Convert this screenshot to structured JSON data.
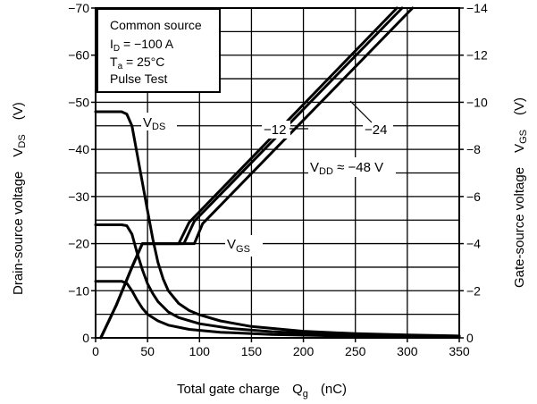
{
  "chart_data": {
    "type": "line",
    "x_ticks": [
      "0",
      "50",
      "100",
      "150",
      "200",
      "250",
      "300",
      "350"
    ],
    "y_left_ticks": [
      "0",
      "−10",
      "−20",
      "−30",
      "−40",
      "−50",
      "−60",
      "−70"
    ],
    "y_right_ticks": [
      "0",
      "−2",
      "−4",
      "−6",
      "−8",
      "−10",
      "−12",
      "−14"
    ],
    "xlim": [
      0,
      350
    ],
    "ylim_left": [
      0,
      -70
    ],
    "ylim_right": [
      0,
      -14
    ],
    "grid": true,
    "x_label": {
      "main": "Total gate charge",
      "sym": "Q",
      "sub": "g",
      "unit": "(nC)"
    },
    "y_left_label": {
      "main": "Drain-source voltage",
      "sym": "V",
      "sub": "DS",
      "unit": "(V)"
    },
    "y_right_label": {
      "main": "Gate-source voltage",
      "sym": "V",
      "sub": "GS",
      "unit": "(V)"
    },
    "legend": {
      "title": "Common source",
      "line1": {
        "sym": "I",
        "sub": "D",
        "text": " = −100 A"
      },
      "line2": {
        "sym": "T",
        "sub": "a",
        "text": " = 25°C"
      },
      "line3": "Pulse Test"
    },
    "annotations": {
      "vds": {
        "sym": "V",
        "sub": "DS"
      },
      "vgs": {
        "sym": "V",
        "sub": "GS"
      },
      "vdd": {
        "sym": "V",
        "sub": "DD",
        "text": " ≈ −48 V"
      },
      "m12": "−12",
      "m24": "−24"
    },
    "series": [
      {
        "axis": "left",
        "label": "VDS at VDD −48 V",
        "points": [
          [
            0,
            -48
          ],
          [
            25,
            -48
          ],
          [
            30,
            -47.5
          ],
          [
            35,
            -45
          ],
          [
            40,
            -39
          ],
          [
            45,
            -33
          ],
          [
            50,
            -27
          ],
          [
            55,
            -21
          ],
          [
            60,
            -16
          ],
          [
            65,
            -12.5
          ],
          [
            70,
            -10
          ],
          [
            80,
            -7.3
          ],
          [
            90,
            -5.8
          ],
          [
            100,
            -4.9
          ],
          [
            120,
            -3.6
          ],
          [
            150,
            -2.4
          ],
          [
            200,
            -1.4
          ],
          [
            250,
            -0.9
          ],
          [
            300,
            -0.6
          ],
          [
            350,
            -0.4
          ]
        ]
      },
      {
        "axis": "left",
        "label": "VDS at VDD −24 V",
        "points": [
          [
            0,
            -24
          ],
          [
            25,
            -24
          ],
          [
            30,
            -23.8
          ],
          [
            35,
            -22
          ],
          [
            40,
            -18
          ],
          [
            45,
            -14.5
          ],
          [
            50,
            -11.5
          ],
          [
            55,
            -9.4
          ],
          [
            60,
            -7.7
          ],
          [
            70,
            -5.5
          ],
          [
            80,
            -4.3
          ],
          [
            100,
            -3
          ],
          [
            130,
            -2
          ],
          [
            170,
            -1.3
          ],
          [
            220,
            -0.8
          ],
          [
            280,
            -0.5
          ],
          [
            350,
            -0.3
          ]
        ]
      },
      {
        "axis": "left",
        "label": "VDS at VDD −12 V",
        "points": [
          [
            0,
            -12
          ],
          [
            25,
            -12
          ],
          [
            30,
            -11.6
          ],
          [
            35,
            -10
          ],
          [
            40,
            -8
          ],
          [
            45,
            -6.3
          ],
          [
            50,
            -5
          ],
          [
            60,
            -3.6
          ],
          [
            70,
            -2.7
          ],
          [
            90,
            -1.8
          ],
          [
            120,
            -1.2
          ],
          [
            170,
            -0.7
          ],
          [
            250,
            -0.35
          ],
          [
            350,
            -0.2
          ]
        ]
      },
      {
        "axis": "right",
        "label": "VGS at VDD −12 V",
        "points": [
          [
            5,
            0
          ],
          [
            20,
            -1.4
          ],
          [
            35,
            -3
          ],
          [
            45,
            -4
          ],
          [
            80,
            -4
          ],
          [
            90,
            -4.9
          ],
          [
            290,
            -14
          ]
        ]
      },
      {
        "axis": "right",
        "label": "VGS at VDD −24 V",
        "points": [
          [
            5,
            0
          ],
          [
            20,
            -1.4
          ],
          [
            35,
            -3
          ],
          [
            45,
            -4
          ],
          [
            85,
            -4
          ],
          [
            95,
            -4.95
          ],
          [
            295,
            -14
          ]
        ]
      },
      {
        "axis": "right",
        "label": "VGS at VDD −48 V",
        "points": [
          [
            5,
            0
          ],
          [
            20,
            -1.4
          ],
          [
            35,
            -3
          ],
          [
            45,
            -4
          ],
          [
            95,
            -4
          ],
          [
            103,
            -4.85
          ],
          [
            305,
            -14
          ]
        ]
      }
    ]
  }
}
